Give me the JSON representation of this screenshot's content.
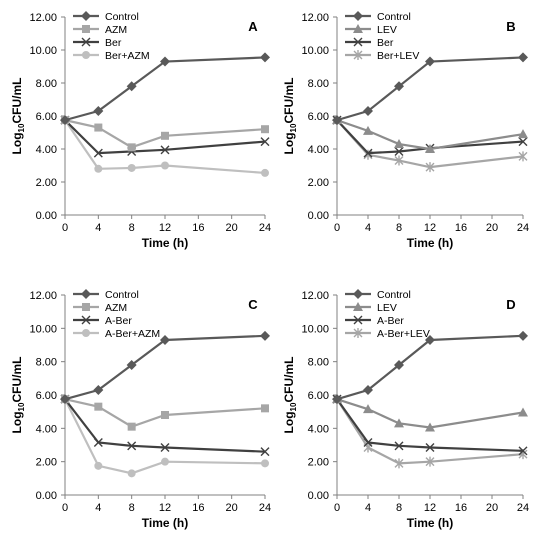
{
  "chart_data": [
    {
      "type": "line",
      "panel": "A",
      "x": [
        0,
        4,
        8,
        12,
        24
      ],
      "xlabel": "Time (h)",
      "ylabel": "Log10CFU/mL",
      "ylabel_main": "Log",
      "ylabel_sub": "10",
      "ylabel_rest": "CFU/mL",
      "ylim": [
        0,
        12
      ],
      "yticks": [
        "0.00",
        "2.00",
        "4.00",
        "6.00",
        "8.00",
        "10.00",
        "12.00"
      ],
      "xticks": [
        "0",
        "4",
        "8",
        "12",
        "16",
        "20",
        "24"
      ],
      "legend_position": "top-left",
      "series": [
        {
          "name": "Control",
          "values": [
            5.75,
            6.3,
            7.8,
            9.3,
            9.55
          ],
          "color": "#595959",
          "marker": "diamond"
        },
        {
          "name": "AZM",
          "values": [
            5.75,
            5.3,
            4.1,
            4.8,
            5.2
          ],
          "color": "#a6a6a6",
          "marker": "square"
        },
        {
          "name": "Ber",
          "values": [
            5.75,
            3.75,
            3.85,
            3.95,
            4.45
          ],
          "color": "#404040",
          "marker": "x"
        },
        {
          "name": "Ber+AZM",
          "values": [
            5.75,
            2.8,
            2.85,
            3.0,
            2.55
          ],
          "color": "#bfbfbf",
          "marker": "circle"
        }
      ]
    },
    {
      "type": "line",
      "panel": "B",
      "x": [
        0,
        4,
        8,
        12,
        24
      ],
      "xlabel": "Time (h)",
      "ylabel": "Log10CFU/mL",
      "ylabel_main": "Log",
      "ylabel_sub": "10",
      "ylabel_rest": "CFU/mL",
      "ylim": [
        0,
        12
      ],
      "yticks": [
        "0.00",
        "2.00",
        "4.00",
        "6.00",
        "8.00",
        "10.00",
        "12.00"
      ],
      "xticks": [
        "0",
        "4",
        "8",
        "12",
        "16",
        "20",
        "24"
      ],
      "legend_position": "top-left",
      "series": [
        {
          "name": "Control",
          "values": [
            5.75,
            6.3,
            7.8,
            9.3,
            9.55
          ],
          "color": "#595959",
          "marker": "diamond"
        },
        {
          "name": "LEV",
          "values": [
            5.75,
            5.1,
            4.3,
            4.0,
            4.9
          ],
          "color": "#8c8c8c",
          "marker": "triangle"
        },
        {
          "name": "Ber",
          "values": [
            5.75,
            3.75,
            3.85,
            4.05,
            4.45
          ],
          "color": "#404040",
          "marker": "x"
        },
        {
          "name": "Ber+LEV",
          "values": [
            5.75,
            3.65,
            3.3,
            2.9,
            3.55
          ],
          "color": "#a6a6a6",
          "marker": "star"
        }
      ]
    },
    {
      "type": "line",
      "panel": "C",
      "x": [
        0,
        4,
        8,
        12,
        24
      ],
      "xlabel": "Time (h)",
      "ylabel": "Log10CFU/mL",
      "ylabel_main": "Log",
      "ylabel_sub": "10",
      "ylabel_rest": "CFU/mL",
      "ylim": [
        0,
        12
      ],
      "yticks": [
        "0.00",
        "2.00",
        "4.00",
        "6.00",
        "8.00",
        "10.00",
        "12.00"
      ],
      "xticks": [
        "0",
        "4",
        "8",
        "12",
        "16",
        "20",
        "24"
      ],
      "legend_position": "top-left",
      "series": [
        {
          "name": "Control",
          "values": [
            5.75,
            6.3,
            7.8,
            9.3,
            9.55
          ],
          "color": "#595959",
          "marker": "diamond"
        },
        {
          "name": "AZM",
          "values": [
            5.75,
            5.3,
            4.1,
            4.8,
            5.2
          ],
          "color": "#a6a6a6",
          "marker": "square"
        },
        {
          "name": "A-Ber",
          "values": [
            5.75,
            3.15,
            2.95,
            2.85,
            2.6
          ],
          "color": "#404040",
          "marker": "x"
        },
        {
          "name": "A-Ber+AZM",
          "values": [
            5.75,
            1.75,
            1.3,
            2.0,
            1.9
          ],
          "color": "#bfbfbf",
          "marker": "circle"
        }
      ]
    },
    {
      "type": "line",
      "panel": "D",
      "x": [
        0,
        4,
        8,
        12,
        24
      ],
      "xlabel": "Time (h)",
      "ylabel": "Log10CFU/mL",
      "ylabel_main": "Log",
      "ylabel_sub": "10",
      "ylabel_rest": "CFU/mL",
      "ylim": [
        0,
        12
      ],
      "yticks": [
        "0.00",
        "2.00",
        "4.00",
        "6.00",
        "8.00",
        "10.00",
        "12.00"
      ],
      "xticks": [
        "0",
        "4",
        "8",
        "12",
        "16",
        "20",
        "24"
      ],
      "legend_position": "top-left",
      "series": [
        {
          "name": "Control",
          "values": [
            5.75,
            6.3,
            7.8,
            9.3,
            9.55
          ],
          "color": "#595959",
          "marker": "diamond"
        },
        {
          "name": "LEV",
          "values": [
            5.75,
            5.15,
            4.3,
            4.05,
            4.95
          ],
          "color": "#8c8c8c",
          "marker": "triangle"
        },
        {
          "name": "A-Ber",
          "values": [
            5.75,
            3.15,
            2.95,
            2.85,
            2.65
          ],
          "color": "#404040",
          "marker": "x"
        },
        {
          "name": "A-Ber+LEV",
          "values": [
            5.75,
            2.85,
            1.9,
            2.0,
            2.45
          ],
          "color": "#a6a6a6",
          "marker": "star"
        }
      ]
    }
  ]
}
